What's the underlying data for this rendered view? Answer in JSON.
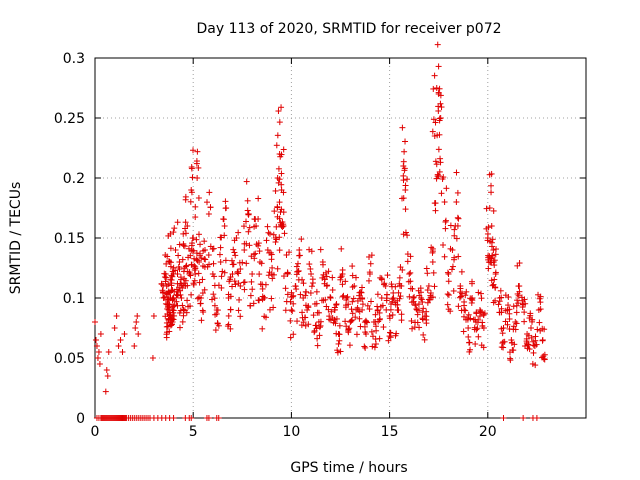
{
  "chart_data": {
    "type": "scatter",
    "title": "Day 113 of 2020, SRMTID for receiver p072",
    "xlabel": "GPS time / hours",
    "ylabel": "SRMTID / TECUs",
    "xlim": [
      0,
      25
    ],
    "ylim": [
      0,
      0.3
    ],
    "xticks": [
      0,
      5,
      10,
      15,
      20
    ],
    "yticks": [
      0,
      0.05,
      0.1,
      0.15,
      0.2,
      0.25,
      0.3
    ],
    "xtick_labels": [
      "0",
      "5",
      "10",
      "15",
      "20"
    ],
    "ytick_labels": [
      "0",
      "0.05",
      "0.1",
      "0.15",
      "0.2",
      "0.25",
      "0.3"
    ],
    "grid": true,
    "marker": "+",
    "color": "#e00000",
    "series": [
      {
        "name": "SRMTID",
        "x": [
          0.0,
          0.05,
          0.1,
          0.15,
          0.2,
          0.25,
          0.3,
          0.1,
          0.2,
          0.6,
          0.65,
          0.7,
          0.55,
          1.0,
          1.1,
          1.2,
          1.3,
          1.4,
          1.5,
          2.0,
          2.05,
          2.1,
          2.15,
          2.2,
          2.95,
          3.0,
          3.5,
          3.6,
          3.65,
          3.7,
          3.75,
          3.8,
          3.85,
          3.9,
          3.95,
          4.0,
          4.1,
          4.2,
          4.3,
          4.4,
          4.5,
          4.6,
          4.7,
          4.8,
          4.9,
          5.0,
          5.1,
          5.2,
          5.3,
          5.4,
          5.6,
          5.8,
          6.0,
          6.2,
          6.4,
          6.6,
          6.8,
          7.0,
          7.2,
          7.4,
          7.6,
          7.8,
          8.0,
          8.2,
          8.4,
          8.6,
          8.8,
          9.0,
          9.2,
          9.3,
          9.4,
          9.5,
          9.6,
          9.8,
          10.0,
          10.2,
          10.4,
          10.6,
          10.8,
          11.0,
          11.2,
          11.4,
          11.6,
          11.8,
          12.0,
          12.2,
          12.4,
          12.6,
          12.8,
          13.0,
          13.2,
          13.4,
          13.6,
          13.8,
          14.0,
          14.2,
          14.4,
          14.6,
          14.8,
          15.0,
          15.2,
          15.4,
          15.6,
          15.7,
          15.8,
          16.0,
          16.2,
          16.4,
          16.6,
          16.8,
          17.0,
          17.2,
          17.3,
          17.4,
          17.5,
          17.6,
          17.8,
          18.0,
          18.2,
          18.4,
          18.6,
          18.8,
          19.0,
          19.2,
          19.4,
          19.6,
          19.8,
          20.0,
          20.1,
          20.2,
          20.3,
          20.4,
          20.6,
          20.8,
          21.0,
          21.2,
          21.4,
          21.6,
          21.8,
          22.0,
          22.2,
          22.4,
          22.6,
          22.8
        ],
        "y": [
          0.08,
          0.065,
          0.06,
          0.05,
          0.055,
          0.045,
          0.07,
          0.0,
          0.0,
          0.04,
          0.035,
          0.055,
          0.022,
          0.075,
          0.085,
          0.06,
          0.065,
          0.055,
          0.07,
          0.06,
          0.075,
          0.08,
          0.085,
          0.07,
          0.05,
          0.085,
          0.1,
          0.12,
          0.11,
          0.095,
          0.09,
          0.13,
          0.1,
          0.115,
          0.08,
          0.1,
          0.14,
          0.12,
          0.13,
          0.1,
          0.145,
          0.11,
          0.16,
          0.12,
          0.19,
          0.15,
          0.12,
          0.2,
          0.13,
          0.1,
          0.14,
          0.17,
          0.12,
          0.09,
          0.13,
          0.16,
          0.1,
          0.12,
          0.15,
          0.11,
          0.14,
          0.17,
          0.12,
          0.16,
          0.13,
          0.1,
          0.14,
          0.12,
          0.15,
          0.2,
          0.22,
          0.19,
          0.16,
          0.12,
          0.09,
          0.11,
          0.14,
          0.1,
          0.09,
          0.12,
          0.095,
          0.08,
          0.13,
          0.11,
          0.1,
          0.09,
          0.07,
          0.12,
          0.1,
          0.08,
          0.11,
          0.09,
          0.1,
          0.07,
          0.12,
          0.08,
          0.09,
          0.1,
          0.11,
          0.085,
          0.1,
          0.09,
          0.11,
          0.21,
          0.19,
          0.12,
          0.1,
          0.09,
          0.1,
          0.085,
          0.11,
          0.13,
          0.235,
          0.275,
          0.27,
          0.25,
          0.18,
          0.12,
          0.14,
          0.18,
          0.11,
          0.09,
          0.075,
          0.1,
          0.08,
          0.09,
          0.075,
          0.15,
          0.175,
          0.16,
          0.13,
          0.12,
          0.1,
          0.075,
          0.09,
          0.065,
          0.08,
          0.11,
          0.095,
          0.07,
          0.075,
          0.06,
          0.09,
          0.065
        ],
        "x_zero": [
          0.3,
          0.35,
          0.4,
          0.45,
          0.5,
          0.55,
          0.6,
          0.65,
          0.7,
          0.75,
          0.8,
          0.85,
          0.9,
          0.95,
          1.0,
          1.05,
          1.1,
          1.15,
          1.2,
          1.25,
          1.3,
          1.35,
          1.4,
          1.45,
          1.5,
          1.55,
          1.6,
          1.7,
          1.8,
          1.9,
          2.0,
          2.1,
          2.2,
          2.3,
          2.4,
          2.5,
          2.6,
          2.7,
          2.8,
          3.0,
          3.2,
          3.4,
          3.6,
          3.8,
          4.0,
          4.6,
          4.8,
          4.9,
          5.7,
          5.8,
          6.2,
          6.3,
          20.8,
          21.8,
          22.3,
          22.5
        ]
      }
    ]
  }
}
